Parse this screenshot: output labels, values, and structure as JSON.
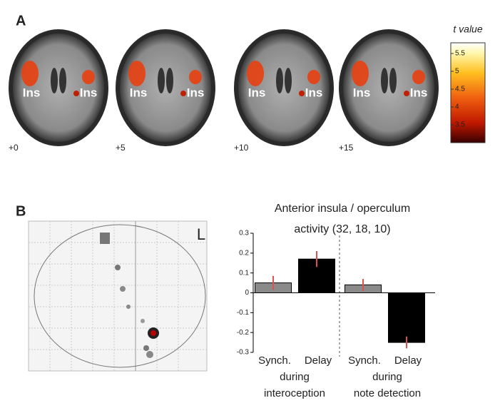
{
  "panel_a": {
    "label": "A",
    "slices": [
      {
        "offset": "+0",
        "labels": [
          "Ins",
          "Ins"
        ]
      },
      {
        "offset": "+5",
        "labels": [
          "Ins",
          "Ins"
        ]
      },
      {
        "offset": "+10",
        "labels": [
          "Ins",
          "Ins"
        ]
      },
      {
        "offset": "+15",
        "labels": [
          "Ins",
          "Ins"
        ]
      }
    ],
    "colorbar": {
      "label": "t value",
      "ylim": [
        3,
        5.8
      ],
      "yticks": [
        3.5,
        4,
        4.5,
        5,
        5.5
      ]
    }
  },
  "panel_b": {
    "label": "B",
    "orientation": "L"
  },
  "chart_data": {
    "type": "bar",
    "title_lines": [
      "Anterior insula / operculum",
      "activity (32, 18, 10)"
    ],
    "categories": [
      "Synch.",
      "Delay",
      "Synch.",
      "Delay"
    ],
    "groups": [
      {
        "lines": [
          "during",
          "interoception"
        ]
      },
      {
        "lines": [
          "during",
          "note detection"
        ]
      }
    ],
    "values": [
      0.05,
      0.17,
      0.04,
      -0.25
    ],
    "errors": [
      0.035,
      0.04,
      0.03,
      0.03
    ],
    "colors": [
      "#8a8a8a",
      "#000000",
      "#8a8a8a",
      "#000000"
    ],
    "error_color": "#e05050",
    "ylim": [
      -0.3,
      0.3
    ],
    "yticks": [
      0.3,
      0.2,
      0.1,
      0,
      -0.1,
      -0.2,
      -0.3
    ]
  }
}
